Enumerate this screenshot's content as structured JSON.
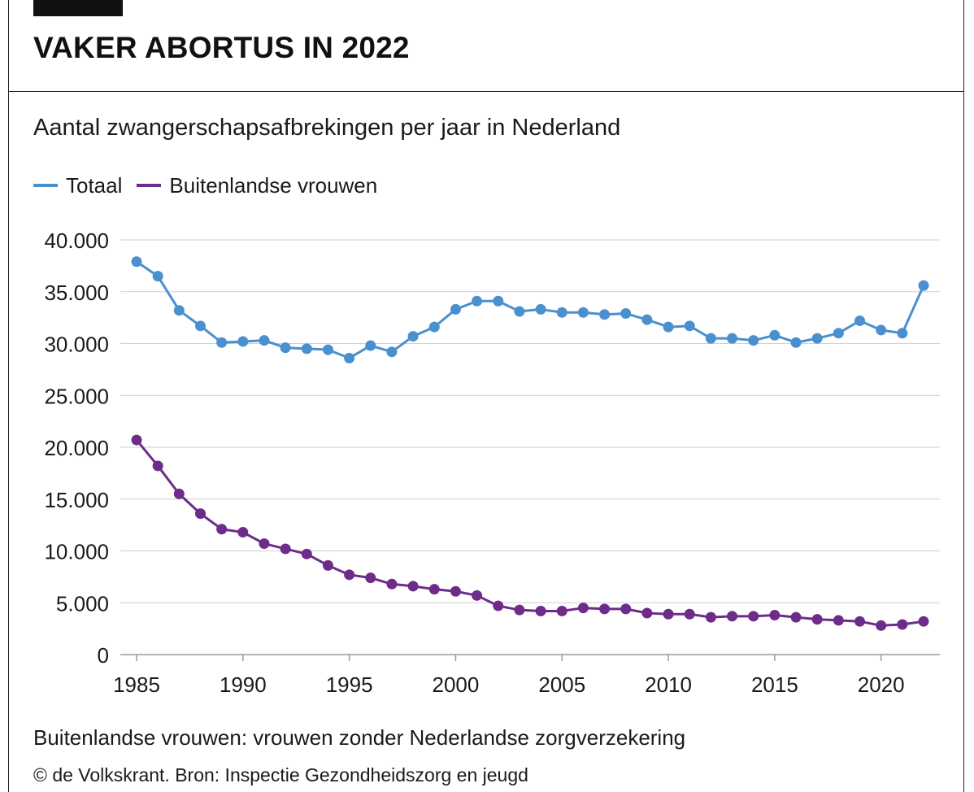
{
  "header": {
    "title": "VAKER ABORTUS IN 2022",
    "subtitle": "Aantal zwangerschapsafbrekingen per jaar in Nederland"
  },
  "legend": [
    {
      "label": "Totaal",
      "color": "#4a90cf"
    },
    {
      "label": "Buitenlandse vrouwen",
      "color": "#6e2c8a"
    }
  ],
  "footer": {
    "note": "Buitenlandse vrouwen: vrouwen zonder Nederlandse zorgverzekering",
    "source": "© de Volkskrant. Bron: Inspectie Gezondheidszorg en jeugd"
  },
  "chart_data": {
    "type": "line",
    "title": "VAKER ABORTUS IN 2022",
    "subtitle": "Aantal zwangerschapsafbrekingen per jaar in Nederland",
    "xlabel": "",
    "ylabel": "",
    "x": [
      1985,
      1986,
      1987,
      1988,
      1989,
      1990,
      1991,
      1992,
      1993,
      1994,
      1995,
      1996,
      1997,
      1998,
      1999,
      2000,
      2001,
      2002,
      2003,
      2004,
      2005,
      2006,
      2007,
      2008,
      2009,
      2010,
      2011,
      2012,
      2013,
      2014,
      2015,
      2016,
      2017,
      2018,
      2019,
      2020,
      2021,
      2022
    ],
    "xlim": [
      1985,
      2022
    ],
    "ylim": [
      0,
      40000
    ],
    "x_ticks": [
      1985,
      1990,
      1995,
      2000,
      2005,
      2010,
      2015,
      2020
    ],
    "y_ticks": [
      0,
      5000,
      10000,
      15000,
      20000,
      25000,
      30000,
      35000,
      40000
    ],
    "y_tick_labels": [
      "0",
      "5.000",
      "10.000",
      "15.000",
      "20.000",
      "25.000",
      "30.000",
      "35.000",
      "40.000"
    ],
    "grid": "horizontal",
    "legend_position": "top-left",
    "series": [
      {
        "name": "Totaal",
        "color": "#4a90cf",
        "values": [
          37900,
          36500,
          33200,
          31700,
          30100,
          30200,
          30300,
          29600,
          29500,
          29400,
          28600,
          29800,
          29200,
          30700,
          31600,
          33300,
          34100,
          34100,
          33100,
          33300,
          33000,
          33000,
          32800,
          32900,
          32300,
          31600,
          31700,
          30500,
          30500,
          30300,
          30800,
          30100,
          30500,
          31000,
          32200,
          31300,
          31000,
          35600
        ]
      },
      {
        "name": "Buitenlandse vrouwen",
        "color": "#6e2c8a",
        "values": [
          20700,
          18200,
          15500,
          13600,
          12100,
          11800,
          10700,
          10200,
          9700,
          8600,
          7700,
          7400,
          6800,
          6600,
          6300,
          6100,
          5700,
          4700,
          4300,
          4200,
          4200,
          4500,
          4400,
          4400,
          4000,
          3900,
          3900,
          3600,
          3700,
          3700,
          3800,
          3600,
          3400,
          3300,
          3200,
          2800,
          2900,
          3200
        ]
      }
    ]
  }
}
